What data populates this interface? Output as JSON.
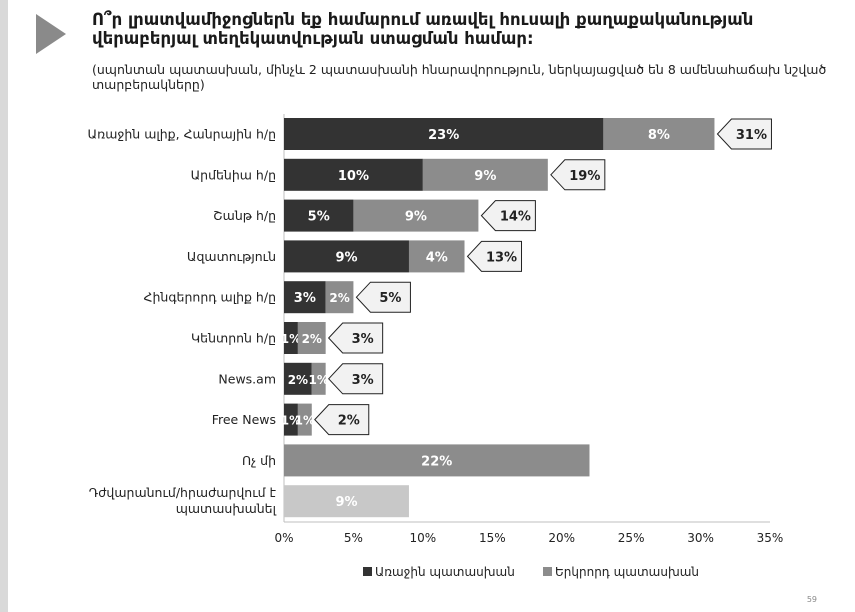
{
  "title": "Ո՞ր լրատվամիջոցներն եք համարում առավել հուսալի քաղաքականության վերաբերյալ տեղեկատվության ստացման համար:",
  "subtitle": "(սպոնտան պատասխան, մինչև 2 պատասխանի հնարավորություն, ներկայացված են 8 ամենահաճախ նշված տարբերակները)",
  "page_number": "59",
  "colors": {
    "first": "#333333",
    "second": "#8c8c8c",
    "last_item": "#c8c8c8",
    "callout_fill": "#f2f2f2",
    "arrow": "#8a8a8a"
  },
  "chart_data": {
    "type": "bar",
    "orientation": "horizontal",
    "stacked": true,
    "categories": [
      "Առաջին ալիք, Հանրային հ/ը",
      "Արմենիա հ/ը",
      "Շանթ հ/ը",
      "Ազատություն",
      "Հինգերորդ ալիք հ/ը",
      "Կենտրոն հ/ը",
      "News.am",
      "Free News",
      "Ոչ մի",
      "Դժվարանում/հրաժարվում է պատասխանել"
    ],
    "series": [
      {
        "name": "Առաջին պատասխան",
        "values": [
          23,
          10,
          5,
          9,
          3,
          1,
          2,
          1,
          22,
          9
        ]
      },
      {
        "name": "Երկրորդ պատասխան",
        "values": [
          8,
          9,
          9,
          4,
          2,
          2,
          1,
          1,
          null,
          null
        ]
      }
    ],
    "totals": [
      31,
      19,
      14,
      13,
      5,
      3,
      3,
      2,
      null,
      null
    ],
    "xlim": [
      0,
      35
    ],
    "xticks": [
      0,
      5,
      10,
      15,
      20,
      25,
      30,
      35
    ],
    "xtick_labels": [
      "0%",
      "5%",
      "10%",
      "15%",
      "20%",
      "25%",
      "30%",
      "35%"
    ],
    "value_suffix": "%",
    "legend_position": "bottom"
  }
}
